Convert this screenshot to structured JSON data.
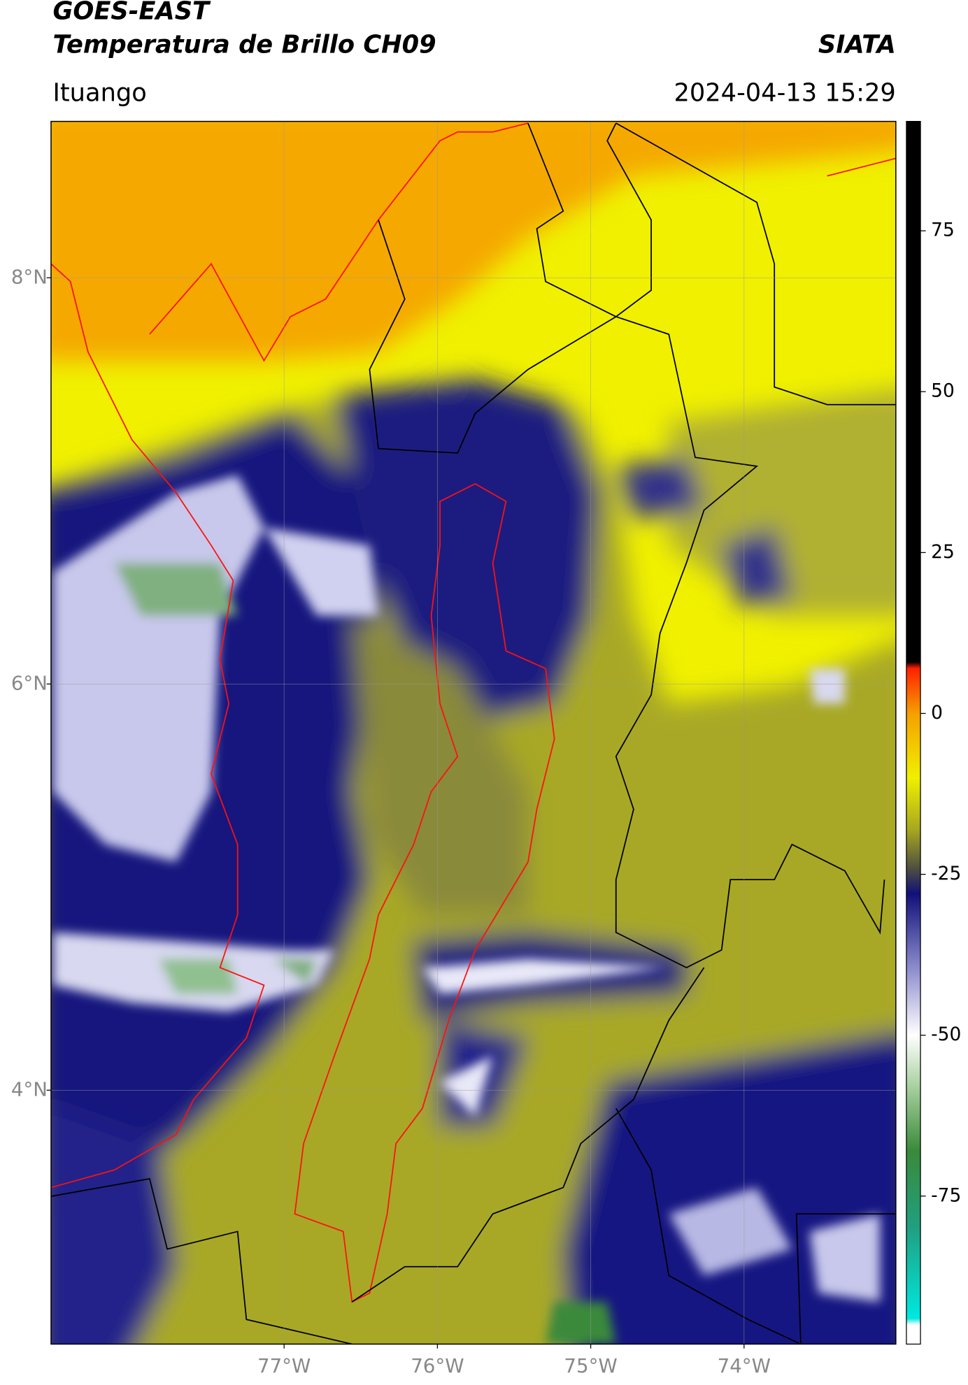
{
  "header": {
    "title": "GOES-EAST",
    "subtitle": "Temperatura de Brillo CH09",
    "source": "SIATA",
    "region": "Ituango",
    "datetime": "2024-04-13 15:29"
  },
  "map": {
    "xlim": [
      -78.52,
      -73.01
    ],
    "ylim": [
      2.75,
      8.77
    ],
    "xticks": [
      {
        "value": -77,
        "label": "77°W"
      },
      {
        "value": -76,
        "label": "76°W"
      },
      {
        "value": -75,
        "label": "75°W"
      },
      {
        "value": -74,
        "label": "74°W"
      }
    ],
    "yticks": [
      {
        "value": 4,
        "label": "4°N"
      },
      {
        "value": 6,
        "label": "6°N"
      },
      {
        "value": 8,
        "label": "8°N"
      }
    ],
    "grid": true
  },
  "colorbar": {
    "lim": [
      -98,
      92
    ],
    "ticks": [
      -75,
      -50,
      -25,
      0,
      25,
      50,
      75
    ],
    "stops": [
      {
        "value": -98,
        "color": "#ffffff"
      },
      {
        "value": -95,
        "color": "#ffffff"
      },
      {
        "value": -94,
        "color": "#00e8e0"
      },
      {
        "value": -80,
        "color": "#20a080"
      },
      {
        "value": -68,
        "color": "#3a8a3a"
      },
      {
        "value": -58,
        "color": "#a8d0a0"
      },
      {
        "value": -50,
        "color": "#ffffff"
      },
      {
        "value": -40,
        "color": "#9090d0"
      },
      {
        "value": -28,
        "color": "#10107a"
      },
      {
        "value": -24,
        "color": "#505040"
      },
      {
        "value": -18,
        "color": "#a8a820"
      },
      {
        "value": -10,
        "color": "#f0f000"
      },
      {
        "value": 0,
        "color": "#f5a000"
      },
      {
        "value": 7,
        "color": "#ff2000"
      },
      {
        "value": 8,
        "color": "#000000"
      },
      {
        "value": 92,
        "color": "#000000"
      }
    ]
  }
}
